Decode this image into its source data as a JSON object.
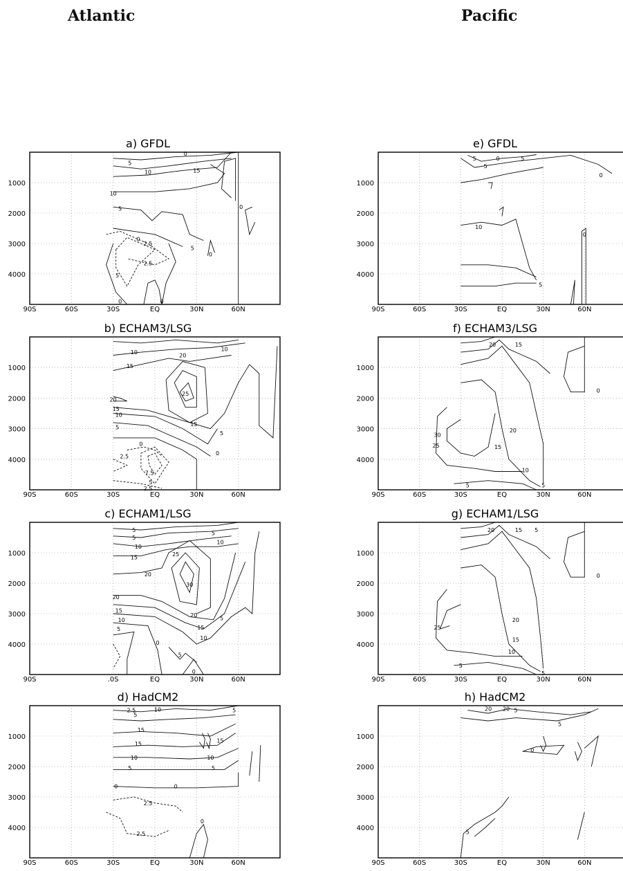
{
  "columns": {
    "left": "Atlantic",
    "right": "Pacific"
  },
  "chart_data": [
    {
      "id": "a",
      "type": "contour",
      "title": "a) GFDL",
      "basin": "Atlantic",
      "x_ticks": [
        "90S",
        "60S",
        "30S",
        "EQ",
        "30N",
        "60N"
      ],
      "y_ticks": [
        "1000",
        "2000",
        "3000",
        "4000"
      ],
      "xlim": [
        -90,
        90
      ],
      "ylim": [
        0,
        5000
      ],
      "grid": true,
      "contour_labels": [
        {
          "v": "5",
          "x": -18,
          "y": 350
        },
        {
          "v": "10",
          "x": -5,
          "y": 650
        },
        {
          "v": "15",
          "x": 30,
          "y": 600
        },
        {
          "v": "10",
          "x": -30,
          "y": 1350
        },
        {
          "v": "5",
          "x": -25,
          "y": 1850
        },
        {
          "v": "0",
          "x": -12,
          "y": 2850
        },
        {
          "v": "2.5",
          "x": -5,
          "y": 3000
        },
        {
          "v": "2.5",
          "x": -5,
          "y": 3650
        },
        {
          "v": "5",
          "x": -27,
          "y": 4050
        },
        {
          "v": "0",
          "x": -25,
          "y": 4900
        },
        {
          "v": "0",
          "x": 5,
          "y": 4900
        },
        {
          "v": "5",
          "x": 27,
          "y": 3150
        },
        {
          "v": "0",
          "x": 40,
          "y": 3350
        },
        {
          "v": "0",
          "x": 62,
          "y": 1800
        },
        {
          "v": "0",
          "x": 22,
          "y": 50
        }
      ]
    },
    {
      "id": "b",
      "type": "contour",
      "title": "b) ECHAM3/LSG",
      "basin": "Atlantic",
      "x_ticks": [
        "90S",
        "60S",
        "30S",
        "EQ",
        "30N",
        "60N"
      ],
      "y_ticks": [
        "1000",
        "2000",
        "3000",
        "4000"
      ],
      "xlim": [
        -90,
        90
      ],
      "ylim": [
        0,
        5000
      ],
      "grid": true,
      "contour_labels": [
        {
          "v": "10",
          "x": -15,
          "y": 500
        },
        {
          "v": "15",
          "x": -18,
          "y": 950
        },
        {
          "v": "20",
          "x": 20,
          "y": 600
        },
        {
          "v": "10",
          "x": 50,
          "y": 400
        },
        {
          "v": "25",
          "x": 22,
          "y": 1850
        },
        {
          "v": "20",
          "x": -30,
          "y": 2050
        },
        {
          "v": "15",
          "x": -28,
          "y": 2350
        },
        {
          "v": "10",
          "x": -26,
          "y": 2550
        },
        {
          "v": "5",
          "x": -27,
          "y": 2950
        },
        {
          "v": "15",
          "x": 28,
          "y": 2850
        },
        {
          "v": "5",
          "x": 48,
          "y": 3150
        },
        {
          "v": "0",
          "x": -10,
          "y": 3500
        },
        {
          "v": "2.5",
          "x": -22,
          "y": 3900
        },
        {
          "v": "0",
          "x": 45,
          "y": 3800
        },
        {
          "v": "7.5",
          "x": -4,
          "y": 4450
        },
        {
          "v": "5",
          "x": -3,
          "y": 4750
        },
        {
          "v": "2.5",
          "x": -5,
          "y": 4950
        }
      ]
    },
    {
      "id": "c",
      "type": "contour",
      "title": "c) ECHAM1/LSG",
      "basin": "Atlantic",
      "x_ticks": [
        "90S",
        ".0S",
        "EQ",
        "30N",
        "60N"
      ],
      "y_ticks": [
        "1000",
        "2000",
        "3000",
        "4000"
      ],
      "x_tick_values": [
        -90,
        -30,
        0,
        30,
        60
      ],
      "xlim": [
        -90,
        90
      ],
      "ylim": [
        0,
        5000
      ],
      "grid": true,
      "contour_labels": [
        {
          "v": "5",
          "x": -15,
          "y": 250
        },
        {
          "v": "5",
          "x": -15,
          "y": 500
        },
        {
          "v": "10",
          "x": -12,
          "y": 800
        },
        {
          "v": "15",
          "x": -15,
          "y": 1150
        },
        {
          "v": "25",
          "x": 15,
          "y": 1050
        },
        {
          "v": "10",
          "x": 47,
          "y": 650
        },
        {
          "v": "5",
          "x": 42,
          "y": 350
        },
        {
          "v": "20",
          "x": -5,
          "y": 1700
        },
        {
          "v": "30",
          "x": 25,
          "y": 2050
        },
        {
          "v": "20",
          "x": -28,
          "y": 2450
        },
        {
          "v": "15",
          "x": -26,
          "y": 2900
        },
        {
          "v": "10",
          "x": -24,
          "y": 3200
        },
        {
          "v": "5",
          "x": -26,
          "y": 3500
        },
        {
          "v": "20",
          "x": 28,
          "y": 3050
        },
        {
          "v": "15",
          "x": 33,
          "y": 3450
        },
        {
          "v": "10",
          "x": 35,
          "y": 3800
        },
        {
          "v": "5",
          "x": 48,
          "y": 3150
        },
        {
          "v": "0",
          "x": 2,
          "y": 3950
        },
        {
          "v": "5",
          "x": 18,
          "y": 4350
        },
        {
          "v": "0",
          "x": 28,
          "y": 4900
        }
      ]
    },
    {
      "id": "d",
      "type": "contour",
      "title": "d) HadCM2",
      "basin": "Atlantic",
      "x_ticks": [
        "90S",
        "60S",
        "30S",
        "EQ",
        "30N",
        "60N"
      ],
      "y_ticks": [
        "1000",
        "2000",
        "3000",
        "4000"
      ],
      "xlim": [
        -90,
        90
      ],
      "ylim": [
        0,
        5000
      ],
      "grid": true,
      "contour_labels": [
        {
          "v": "2.5",
          "x": -17,
          "y": 150
        },
        {
          "v": "5",
          "x": -14,
          "y": 300
        },
        {
          "v": "10",
          "x": 2,
          "y": 120
        },
        {
          "v": "5",
          "x": 57,
          "y": 150
        },
        {
          "v": "15",
          "x": -10,
          "y": 800
        },
        {
          "v": "15",
          "x": -12,
          "y": 1250
        },
        {
          "v": "15",
          "x": 47,
          "y": 1150
        },
        {
          "v": "10",
          "x": -15,
          "y": 1700
        },
        {
          "v": "10",
          "x": 40,
          "y": 1700
        },
        {
          "v": "5",
          "x": -18,
          "y": 2050
        },
        {
          "v": "5",
          "x": 42,
          "y": 2050
        },
        {
          "v": "0",
          "x": -28,
          "y": 2650
        },
        {
          "v": "0",
          "x": 15,
          "y": 2650
        },
        {
          "v": "2.5",
          "x": -5,
          "y": 3200
        },
        {
          "v": "0",
          "x": 34,
          "y": 3800
        },
        {
          "v": "2.5",
          "x": -10,
          "y": 4200
        }
      ]
    },
    {
      "id": "e",
      "type": "contour",
      "title": "e) GFDL",
      "basin": "Pacific",
      "x_ticks": [
        "90S",
        "60S",
        "30S",
        "EQ",
        "30N",
        "60N"
      ],
      "y_ticks": [
        "1000",
        "2000",
        "3000",
        "4000"
      ],
      "xlim": [
        -90,
        90
      ],
      "ylim": [
        0,
        5000
      ],
      "grid": true,
      "contour_labels": [
        {
          "v": "5",
          "x": -20,
          "y": 200
        },
        {
          "v": "5",
          "x": -12,
          "y": 450
        },
        {
          "v": "0",
          "x": -3,
          "y": 200
        },
        {
          "v": "5",
          "x": 15,
          "y": 200
        },
        {
          "v": "0",
          "x": 72,
          "y": 750
        },
        {
          "v": "10",
          "x": -17,
          "y": 2450
        },
        {
          "v": "0",
          "x": 60,
          "y": 2700
        },
        {
          "v": "5",
          "x": 28,
          "y": 4350
        }
      ]
    },
    {
      "id": "f",
      "type": "contour",
      "title": "f) ECHAM3/LSG",
      "basin": "Pacific",
      "x_ticks": [
        "90S",
        "60S",
        "30S",
        "EQ",
        "30N",
        "60N"
      ],
      "y_ticks": [
        "1000",
        "2000",
        "3000",
        "4000"
      ],
      "xlim": [
        -90,
        90
      ],
      "ylim": [
        0,
        5000
      ],
      "grid": true,
      "contour_labels": [
        {
          "v": "20",
          "x": -7,
          "y": 250
        },
        {
          "v": "15",
          "x": 12,
          "y": 250
        },
        {
          "v": "0",
          "x": 70,
          "y": 1750
        },
        {
          "v": "30",
          "x": -47,
          "y": 3200
        },
        {
          "v": "25",
          "x": -48,
          "y": 3550
        },
        {
          "v": "20",
          "x": 8,
          "y": 3050
        },
        {
          "v": "15",
          "x": -3,
          "y": 3600
        },
        {
          "v": "10",
          "x": 17,
          "y": 4350
        },
        {
          "v": "5",
          "x": -25,
          "y": 4850
        },
        {
          "v": "5",
          "x": 30,
          "y": 4850
        }
      ]
    },
    {
      "id": "g",
      "type": "contour",
      "title": "g) ECHAM1/LSG",
      "basin": "Pacific",
      "x_ticks": [
        "90S",
        "60S",
        "30S",
        "EQ",
        "30N",
        "60N"
      ],
      "y_ticks": [
        "1000",
        "2000",
        "3000",
        "4000"
      ],
      "xlim": [
        -90,
        90
      ],
      "ylim": [
        0,
        5000
      ],
      "grid": true,
      "contour_labels": [
        {
          "v": "20",
          "x": -8,
          "y": 250
        },
        {
          "v": "15",
          "x": 12,
          "y": 250
        },
        {
          "v": "5",
          "x": 25,
          "y": 250
        },
        {
          "v": "0",
          "x": 70,
          "y": 1750
        },
        {
          "v": "25",
          "x": -47,
          "y": 3450
        },
        {
          "v": "20",
          "x": 10,
          "y": 3200
        },
        {
          "v": "15",
          "x": 10,
          "y": 3850
        },
        {
          "v": "10",
          "x": 7,
          "y": 4250
        },
        {
          "v": "5",
          "x": -30,
          "y": 4700
        },
        {
          "v": "5",
          "x": 30,
          "y": 4950
        }
      ]
    },
    {
      "id": "h",
      "type": "contour",
      "title": "h) HadCM2",
      "basin": "Pacific",
      "x_ticks": [
        "90S",
        "60S",
        "30S",
        "EQ",
        "30N",
        "60N"
      ],
      "y_ticks": [
        "1000",
        "2000",
        "3000",
        "4000"
      ],
      "xlim": [
        -90,
        90
      ],
      "ylim": [
        0,
        5000
      ],
      "grid": true,
      "contour_labels": [
        {
          "v": "20",
          "x": -10,
          "y": 100
        },
        {
          "v": "20",
          "x": 3,
          "y": 100
        },
        {
          "v": "5",
          "x": 10,
          "y": 150
        },
        {
          "v": "5",
          "x": 42,
          "y": 600
        },
        {
          "v": "0",
          "x": 22,
          "y": 1450
        },
        {
          "v": "5",
          "x": -25,
          "y": 4150
        }
      ]
    }
  ]
}
